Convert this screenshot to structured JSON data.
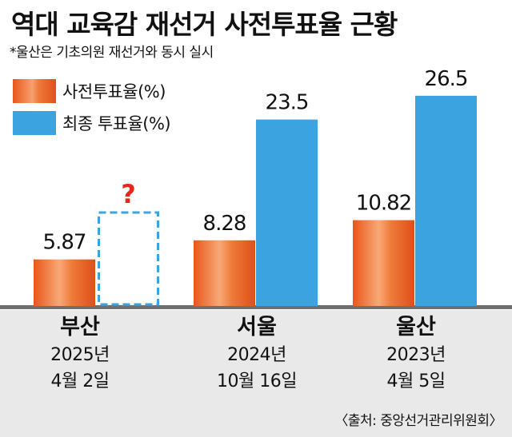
{
  "title": "역대 교육감 재선거 사전투표율 근황",
  "subtitle": "*울산은 기초의원 재선거와 동시 실시",
  "source": "〈출처: 중앙선거관리위원회〉",
  "colors": {
    "early": "#ef6a24",
    "final": "#3ba3e0",
    "baseline": "#6f6f6f",
    "unknown": "#e8261c"
  },
  "chart_data": {
    "type": "bar",
    "categories": [
      "부산",
      "서울",
      "울산"
    ],
    "category_dates": [
      [
        "2025년",
        "4월 2일"
      ],
      [
        "2024년",
        "10월 16일"
      ],
      [
        "2023년",
        "4월 5일"
      ]
    ],
    "series": [
      {
        "name": "사전투표율(%)",
        "values": [
          5.87,
          8.28,
          10.82
        ],
        "labels": [
          "5.87",
          "8.28",
          "10.82"
        ]
      },
      {
        "name": "최종 투표율(%)",
        "values": [
          null,
          23.5,
          26.5
        ],
        "labels": [
          "?",
          "23.5",
          "26.5"
        ]
      }
    ],
    "ylim": [
      0,
      28.5
    ],
    "grid": false,
    "legend_position": "top-left"
  }
}
